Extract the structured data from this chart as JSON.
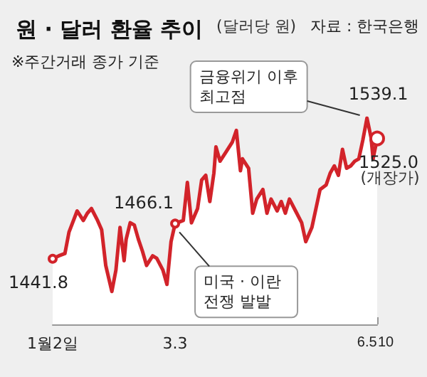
{
  "chart_data": {
    "type": "area",
    "title": "원 · 달러 환율 추이",
    "subtitle": "(달러당 원)",
    "annotations": [
      "자료 : 한국은행",
      "※주간거래 종가 기준",
      {
        "text": "금융위기 이후\n최고점",
        "x": "--06-05",
        "y": 1539.1
      },
      {
        "text": "미국 · 이란\n전쟁 발발",
        "x": "--03-03",
        "y": 1466.1
      },
      {
        "text": "(개장가)",
        "x": "--06-10",
        "y": 1525.0
      }
    ],
    "x": [
      "--01-02",
      "--01-05",
      "--01-08",
      "--01-10",
      "--01-14",
      "--01-17",
      "--01-19",
      "--01-21",
      "--01-24",
      "--01-26",
      "--01-28",
      "--01-31",
      "--02-02",
      "--02-04",
      "--02-06",
      "--02-07",
      "--02-09",
      "--02-11",
      "--02-13",
      "--02-15",
      "--02-17",
      "--02-20",
      "--02-22",
      "--02-25",
      "--02-27",
      "--03-01",
      "--03-03",
      "--03-07",
      "--03-09",
      "--03-11",
      "--03-14",
      "--03-16",
      "--03-18",
      "--03-20",
      "--03-22",
      "--03-23",
      "--03-25",
      "--03-28",
      "--03-31",
      "--04-02",
      "--04-04",
      "--04-05",
      "--04-08",
      "--04-10",
      "--04-12",
      "--04-15",
      "--04-17",
      "--04-19",
      "--04-22",
      "--04-24",
      "--04-26",
      "--04-28",
      "--05-01",
      "--05-04",
      "--05-06",
      "--05-09",
      "--05-11",
      "--05-13",
      "--05-16",
      "--05-18",
      "--05-20",
      "--05-22",
      "--05-24",
      "--05-26",
      "--05-28",
      "--05-30",
      "--06-01",
      "--06-03",
      "--06-05",
      "--06-07",
      "--06-08",
      "--06-10"
    ],
    "series": [
      {
        "color": "#d2232a",
        "values": [
          1441.8,
          1443.8,
          1445.4,
          1460.2,
          1474.9,
          1468.3,
          1473.3,
          1476.5,
          1468.3,
          1461.8,
          1437.2,
          1419.2,
          1434,
          1463.4,
          1440.5,
          1455.3,
          1466.7,
          1465.1,
          1455.3,
          1447,
          1437.2,
          1443.8,
          1442.1,
          1434,
          1424.1,
          1453.6,
          1466.1,
          1468.3,
          1494.6,
          1466.7,
          1476.5,
          1496.2,
          1499.5,
          1481.4,
          1501.1,
          1519.2,
          1509.3,
          1515.8,
          1522.4,
          1530.6,
          1502.7,
          1510.9,
          1504.4,
          1473.3,
          1483.1,
          1489.7,
          1473.3,
          1483.1,
          1474.9,
          1481.4,
          1473.3,
          1483.1,
          1474.9,
          1466.7,
          1453.6,
          1463.4,
          1476.5,
          1489.7,
          1492.9,
          1501.1,
          1506,
          1499.5,
          1517.5,
          1504.4,
          1506,
          1509.3,
          1510.9,
          1524.1,
          1539.1,
          1525.6,
          1510.9,
          1525.0
        ],
        "value_labels": [
          "1441.8",
          null,
          null,
          null,
          null,
          null,
          null,
          null,
          null,
          null,
          null,
          null,
          null,
          null,
          null,
          null,
          null,
          null,
          null,
          null,
          null,
          null,
          null,
          null,
          null,
          null,
          "1466.1",
          null,
          null,
          null,
          null,
          null,
          null,
          null,
          null,
          null,
          null,
          null,
          null,
          null,
          null,
          null,
          null,
          null,
          null,
          null,
          null,
          null,
          null,
          null,
          null,
          null,
          null,
          null,
          null,
          null,
          null,
          null,
          null,
          null,
          null,
          null,
          null,
          null,
          null,
          null,
          null,
          null,
          "1539.1",
          null,
          null,
          "1525.0"
        ]
      }
    ],
    "xlim": [
      "--01-02",
      "--06-10"
    ],
    "xticks": [
      {
        "value": "--01-02",
        "label": "1월2일"
      },
      {
        "value": "--03-03",
        "label": "3.3"
      },
      {
        "value": "--06-05",
        "label": "6.5"
      },
      {
        "value": "--06-10",
        "label": "10"
      }
    ],
    "tick_labels": "x",
    "grid": false
  }
}
